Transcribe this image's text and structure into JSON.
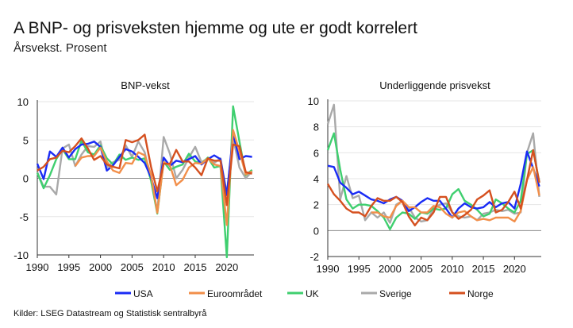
{
  "title": "A BNP- og prisveksten hjemme og ute er godt korrelert",
  "subtitle": "Årsvekst. Prosent",
  "source": "Kilder: LSEG Datastream og Statistisk sentralbyrå",
  "legend": [
    {
      "name": "USA",
      "color": "#1a2cf5"
    },
    {
      "name": "Euroområdet",
      "color": "#f28f4a"
    },
    {
      "name": "UK",
      "color": "#3fcf6f"
    },
    {
      "name": "Sverige",
      "color": "#a9a9a9"
    },
    {
      "name": "Norge",
      "color": "#d5501f"
    }
  ],
  "chart_data": [
    {
      "type": "line",
      "title": "BNP-vekst",
      "x_start": 1990,
      "x_end": 2024,
      "xlim": [
        1990,
        2024.3
      ],
      "ylim": [
        -10,
        10
      ],
      "yticks": [
        10,
        5,
        0,
        -5,
        -10
      ],
      "xticks": [
        1990,
        1995,
        2000,
        2005,
        2010,
        2015,
        2020
      ],
      "grid": true,
      "series": [
        {
          "name": "USA",
          "values": [
            1.9,
            -0.1,
            3.5,
            2.8,
            4.0,
            2.7,
            3.8,
            4.4,
            4.5,
            4.8,
            4.1,
            1.0,
            1.7,
            2.8,
            3.8,
            3.5,
            2.8,
            2.0,
            0.1,
            -2.6,
            2.7,
            1.6,
            2.3,
            2.1,
            2.5,
            2.9,
            1.8,
            2.5,
            3.0,
            2.5,
            -2.2,
            5.8,
            2.5,
            2.9,
            2.8
          ]
        },
        {
          "name": "Euroområdet",
          "values": [
            null,
            null,
            null,
            null,
            null,
            null,
            1.6,
            2.7,
            2.9,
            2.9,
            4.0,
            2.2,
            1.0,
            0.7,
            2.0,
            1.9,
            3.4,
            3.0,
            0.5,
            -4.5,
            2.1,
            1.7,
            -0.9,
            -0.2,
            1.4,
            2.0,
            1.9,
            2.6,
            1.8,
            1.6,
            -6.1,
            6.3,
            3.5,
            0.5,
            0.9
          ]
        },
        {
          "name": "UK",
          "values": [
            0.7,
            -1.3,
            0.4,
            2.5,
            3.8,
            2.5,
            2.5,
            4.9,
            3.4,
            3.1,
            4.3,
            2.6,
            1.8,
            3.1,
            2.4,
            2.7,
            2.4,
            2.6,
            -0.3,
            -4.6,
            2.2,
            1.1,
            1.5,
            1.8,
            3.2,
            2.2,
            1.9,
            2.7,
            1.4,
            1.6,
            -10.3,
            9.4,
            4.8,
            0.4,
            1.1
          ]
        },
        {
          "name": "Sverige",
          "values": [
            0.8,
            -1.1,
            -1.1,
            -2.1,
            3.9,
            4.4,
            1.6,
            3.1,
            4.2,
            4.1,
            4.8,
            1.4,
            2.1,
            2.4,
            4.3,
            2.8,
            4.8,
            3.4,
            -0.2,
            -4.3,
            5.4,
            3.2,
            0.0,
            1.1,
            2.7,
            4.1,
            2.1,
            2.6,
            2.0,
            2.6,
            -2.0,
            5.3,
            1.4,
            0.0,
            0.9
          ]
        },
        {
          "name": "Norge",
          "values": [
            1.0,
            1.5,
            2.5,
            2.7,
            3.6,
            3.4,
            4.2,
            5.2,
            3.9,
            2.4,
            2.9,
            1.8,
            1.5,
            1.3,
            5.0,
            4.7,
            5.0,
            5.7,
            1.5,
            -1.7,
            1.9,
            1.9,
            3.7,
            2.2,
            2.2,
            1.4,
            0.4,
            2.6,
            2.3,
            2.3,
            -3.5,
            4.4,
            4.2,
            0.8,
            0.6
          ]
        }
      ]
    },
    {
      "type": "line",
      "title": "Underliggende prisvekst",
      "x_start": 1990,
      "x_end": 2024,
      "xlim": [
        1990,
        2024.3
      ],
      "ylim": [
        -2,
        10
      ],
      "yticks": [
        10,
        8,
        6,
        4,
        2,
        0,
        -2
      ],
      "xticks": [
        1990,
        1995,
        2000,
        2005,
        2010,
        2015,
        2020
      ],
      "grid": true,
      "series": [
        {
          "name": "USA",
          "values": [
            5.0,
            4.9,
            3.7,
            3.3,
            2.8,
            3.0,
            2.7,
            2.4,
            2.3,
            2.1,
            2.4,
            2.6,
            2.3,
            1.5,
            1.8,
            2.2,
            2.5,
            2.3,
            2.3,
            1.7,
            1.0,
            1.7,
            2.1,
            1.8,
            1.7,
            1.8,
            2.2,
            1.8,
            2.1,
            2.2,
            1.7,
            3.6,
            6.1,
            4.8,
            3.4
          ]
        },
        {
          "name": "Euroområdet",
          "values": [
            null,
            null,
            null,
            null,
            null,
            null,
            null,
            1.4,
            1.4,
            1.1,
            1.0,
            1.9,
            2.3,
            1.8,
            1.8,
            1.4,
            1.4,
            1.9,
            1.8,
            1.3,
            1.0,
            1.4,
            1.5,
            1.1,
            0.8,
            0.9,
            0.8,
            1.0,
            1.0,
            1.0,
            0.7,
            1.5,
            3.9,
            4.9,
            2.7
          ]
        },
        {
          "name": "UK",
          "values": [
            6.2,
            7.5,
            4.7,
            2.4,
            1.7,
            2.0,
            2.0,
            1.9,
            1.5,
            1.0,
            0.1,
            1.0,
            1.4,
            1.3,
            0.9,
            1.4,
            1.3,
            1.7,
            1.6,
            1.7,
            2.8,
            3.2,
            2.3,
            2.0,
            1.6,
            1.1,
            1.3,
            2.4,
            2.1,
            1.7,
            1.4,
            2.3,
            5.9,
            6.2,
            3.7
          ]
        },
        {
          "name": "Sverige",
          "values": [
            8.2,
            9.7,
            2.4,
            4.2,
            2.5,
            2.7,
            0.8,
            1.4,
            1.0,
            1.4,
            0.6,
            2.0,
            2.3,
            1.8,
            1.0,
            0.7,
            0.8,
            1.7,
            2.0,
            2.1,
            1.4,
            1.1,
            1.0,
            1.1,
            0.8,
            1.3,
            1.4,
            1.6,
            1.5,
            1.6,
            1.3,
            1.4,
            6.0,
            7.5,
            2.6
          ]
        },
        {
          "name": "Norge",
          "values": [
            3.6,
            2.8,
            2.3,
            1.7,
            1.4,
            1.4,
            1.1,
            1.9,
            2.5,
            2.3,
            2.3,
            2.6,
            2.2,
            1.1,
            0.4,
            1.0,
            0.8,
            1.4,
            2.6,
            2.6,
            1.4,
            0.9,
            1.2,
            1.6,
            2.4,
            2.7,
            3.1,
            1.4,
            1.6,
            2.2,
            3.0,
            1.7,
            3.9,
            6.2,
            3.7
          ]
        }
      ]
    }
  ]
}
